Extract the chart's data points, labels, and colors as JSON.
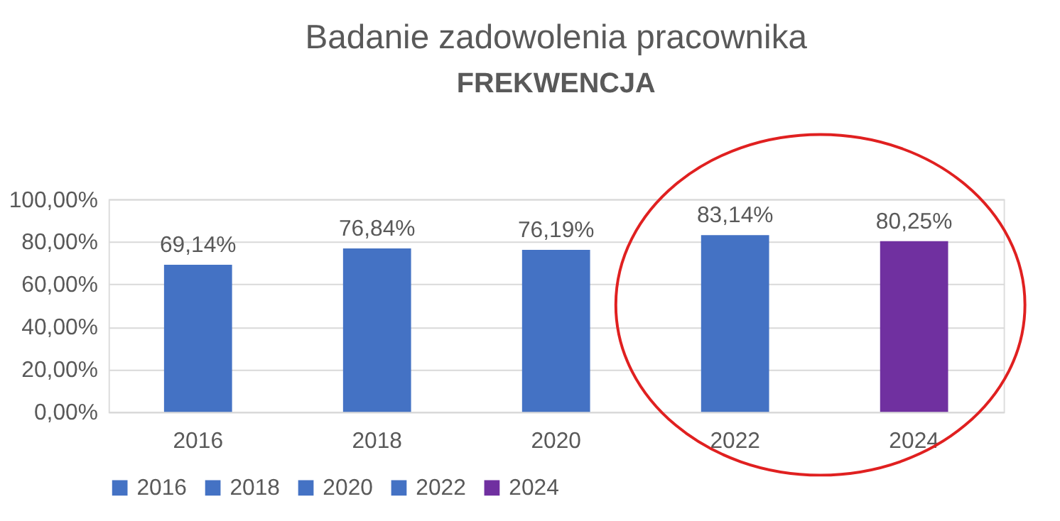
{
  "chart_data": {
    "type": "bar",
    "title": "Badanie zadowolenia pracownika",
    "subtitle": "FREKWENCJA",
    "categories": [
      "2016",
      "2018",
      "2020",
      "2022",
      "2024"
    ],
    "series": [
      {
        "name": "2016",
        "color": "#4472c4",
        "values": [
          69.14,
          null,
          null,
          null,
          null
        ],
        "value_labels": [
          "69,14%",
          null,
          null,
          null,
          null
        ]
      },
      {
        "name": "2018",
        "color": "#4472c4",
        "values": [
          null,
          76.84,
          null,
          null,
          null
        ],
        "value_labels": [
          null,
          "76,84%",
          null,
          null,
          null
        ]
      },
      {
        "name": "2020",
        "color": "#4472c4",
        "values": [
          null,
          null,
          76.19,
          null,
          null
        ],
        "value_labels": [
          null,
          null,
          "76,19%",
          null,
          null
        ]
      },
      {
        "name": "2022",
        "color": "#4472c4",
        "values": [
          null,
          null,
          null,
          83.14,
          null
        ],
        "value_labels": [
          null,
          null,
          null,
          "83,14%",
          null
        ]
      },
      {
        "name": "2024",
        "color": "#7030a0",
        "values": [
          null,
          null,
          null,
          null,
          80.25
        ],
        "value_labels": [
          null,
          null,
          null,
          null,
          "80,25%"
        ]
      }
    ],
    "ylim": [
      0,
      100
    ],
    "yticks": [
      {
        "value": 0,
        "label": "0,00%"
      },
      {
        "value": 20,
        "label": "20,00%"
      },
      {
        "value": 40,
        "label": "40,00%"
      },
      {
        "value": 60,
        "label": "60,00%"
      },
      {
        "value": 80,
        "label": "80,00%"
      },
      {
        "value": 100,
        "label": "100,00%"
      }
    ],
    "grid": "y",
    "legend": "bottom"
  }
}
